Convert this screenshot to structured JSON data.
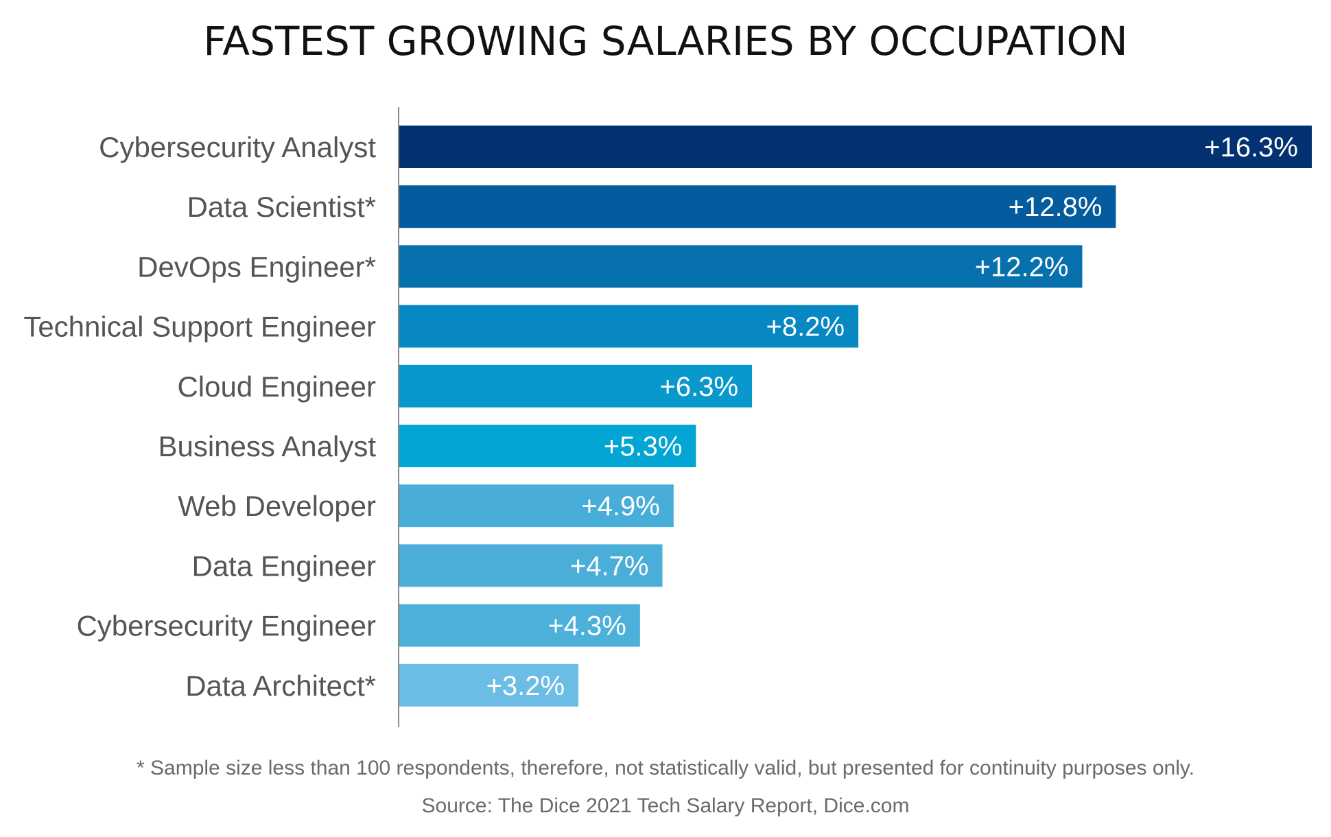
{
  "chart_data": {
    "type": "bar",
    "orientation": "horizontal",
    "title": "FASTEST GROWING SALARIES BY OCCUPATION",
    "categories": [
      "Cybersecurity Analyst",
      "Data Scientist*",
      "DevOps Engineer*",
      "Technical Support Engineer",
      "Cloud Engineer",
      "Business Analyst",
      "Web Developer",
      "Data Engineer",
      "Cybersecurity Engineer",
      "Data Architect*"
    ],
    "values": [
      16.3,
      12.8,
      12.2,
      8.2,
      6.3,
      5.3,
      4.9,
      4.7,
      4.3,
      3.2
    ],
    "value_labels": [
      "+16.3%",
      "+12.8%",
      "+12.2%",
      "+8.2%",
      "+6.3%",
      "+5.3%",
      "+4.9%",
      "+4.7%",
      "+4.3%",
      "+3.2%"
    ],
    "bar_colors": [
      "#033172",
      "#045c9e",
      "#0671ad",
      "#0788c2",
      "#0898cb",
      "#02a5d3",
      "#48aed9",
      "#4aaed9",
      "#4cb0da",
      "#6cbde5"
    ],
    "xlim": [
      0,
      16.3
    ],
    "grid": false,
    "legend": "none"
  },
  "footnotes": {
    "note": "* Sample size less than 100 respondents, therefore, not statistically valid, but presented for continuity purposes only.",
    "source": "Source: The Dice 2021 Tech Salary Report, Dice.com"
  }
}
